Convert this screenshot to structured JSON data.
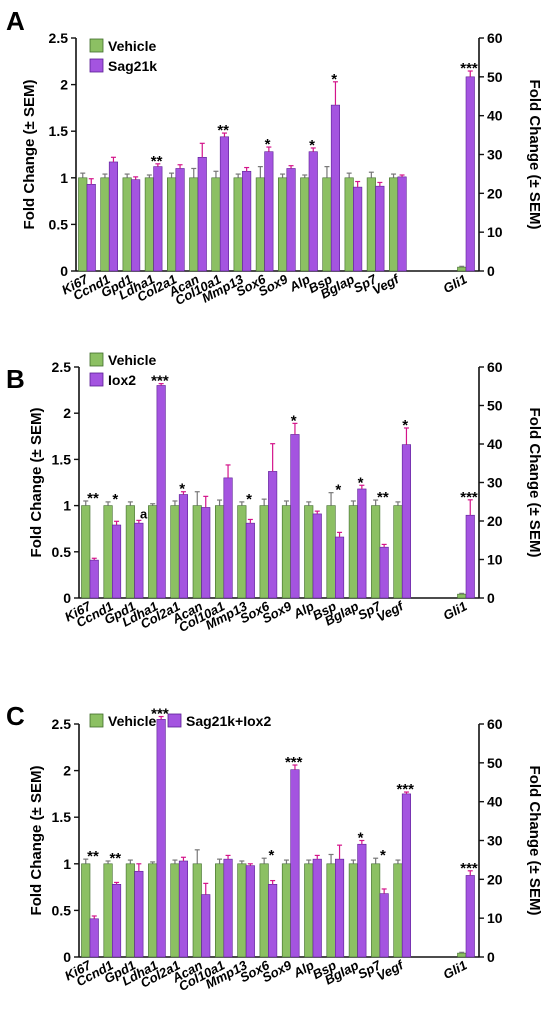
{
  "figure": {
    "colors": {
      "vehicle": "#8cc063",
      "vehicle_stroke": "#3f6b2a",
      "treated": "#a454e0",
      "treated_stroke": "#5b1f94",
      "error_bar": "#d4148a",
      "error_bar_vehicle": "#777777",
      "axis": "#111111"
    }
  },
  "chart_data": [
    {
      "type": "bar",
      "panel_label": "A",
      "ylabel_left": "Fold Change (± SEM)",
      "ylabel_right": "Fold Change (± SEM)",
      "ylim_left": [
        0,
        2.5
      ],
      "ylim_right": [
        0,
        60
      ],
      "yticks_left": [
        "0",
        "0.5",
        "1",
        "1.5",
        "2",
        "2.5"
      ],
      "yticks_right": [
        "0",
        "10",
        "20",
        "30",
        "40",
        "50",
        "60"
      ],
      "legend_placement": "top-left",
      "categories": [
        "Ki67",
        "Ccnd1",
        "Gpd1",
        "Ldha1",
        "Col2a1",
        "Acan",
        "Col10a1",
        "Mmp13",
        "Sox6",
        "Sox9",
        "Alp",
        "Bsp",
        "Bglap",
        "Sp7",
        "Vegf",
        "Gli1"
      ],
      "right_axis_categories": [
        "Gli1"
      ],
      "series": [
        {
          "name": "Vehicle",
          "values": [
            1.0,
            1.0,
            1.0,
            1.0,
            1.0,
            1.0,
            1.0,
            1.0,
            1.0,
            1.0,
            1.0,
            1.0,
            1.0,
            1.0,
            1.0,
            1.0
          ],
          "errors": [
            0.05,
            0.04,
            0.04,
            0.03,
            0.05,
            0.1,
            0.07,
            0.04,
            0.12,
            0.04,
            0.03,
            0.12,
            0.05,
            0.06,
            0.04,
            0.2
          ]
        },
        {
          "name": "Sag21k",
          "values": [
            0.93,
            1.17,
            0.98,
            1.12,
            1.1,
            1.22,
            1.44,
            1.07,
            1.28,
            1.1,
            1.28,
            1.78,
            0.9,
            0.91,
            1.01,
            50.0
          ],
          "errors": [
            0.06,
            0.05,
            0.03,
            0.03,
            0.04,
            0.15,
            0.04,
            0.04,
            0.05,
            0.03,
            0.04,
            0.25,
            0.06,
            0.04,
            0.02,
            1.5
          ]
        }
      ],
      "annotations": [
        {
          "category": "Ldha1",
          "text": "**"
        },
        {
          "category": "Col10a1",
          "text": "**"
        },
        {
          "category": "Sox6",
          "text": "*"
        },
        {
          "category": "Alp",
          "text": "*"
        },
        {
          "category": "Bsp",
          "text": "*"
        },
        {
          "category": "Gli1",
          "text": "***"
        }
      ]
    },
    {
      "type": "bar",
      "panel_label": "B",
      "ylabel_left": "Fold Change (± SEM)",
      "ylabel_right": "Fold Change (± SEM)",
      "ylim_left": [
        0,
        2.5
      ],
      "ylim_right": [
        0,
        60
      ],
      "yticks_left": [
        "0",
        "0.5",
        "1",
        "1.5",
        "2",
        "2.5"
      ],
      "yticks_right": [
        "0",
        "10",
        "20",
        "30",
        "40",
        "50",
        "60"
      ],
      "legend_placement": "top-left",
      "categories": [
        "Ki67",
        "Ccnd1",
        "Gpd1",
        "Ldha1",
        "Col2a1",
        "Acan",
        "Col10a1",
        "Mmp13",
        "Sox6",
        "Sox9",
        "Alp",
        "Bsp",
        "Bglap",
        "Sp7",
        "Vegf",
        "Gli1"
      ],
      "right_axis_categories": [
        "Gli1"
      ],
      "series": [
        {
          "name": "Vehicle",
          "values": [
            1.0,
            1.0,
            1.0,
            1.0,
            1.0,
            1.0,
            1.0,
            1.0,
            1.0,
            1.0,
            1.0,
            1.0,
            1.0,
            1.0,
            1.0,
            1.0
          ],
          "errors": [
            0.05,
            0.04,
            0.04,
            0.02,
            0.05,
            0.15,
            0.06,
            0.04,
            0.07,
            0.05,
            0.04,
            0.14,
            0.05,
            0.06,
            0.04,
            0.2
          ]
        },
        {
          "name": "Iox2",
          "values": [
            0.41,
            0.79,
            0.81,
            2.3,
            1.12,
            0.98,
            1.3,
            0.81,
            1.37,
            1.77,
            0.91,
            0.66,
            1.18,
            0.55,
            1.66,
            21.5
          ],
          "errors": [
            0.02,
            0.04,
            0.03,
            0.02,
            0.03,
            0.12,
            0.14,
            0.04,
            0.3,
            0.12,
            0.03,
            0.05,
            0.04,
            0.03,
            0.18,
            4.0
          ]
        }
      ],
      "annotations": [
        {
          "category": "Ki67",
          "text": "**"
        },
        {
          "category": "Ccnd1",
          "text": "*"
        },
        {
          "category": "Gpd1",
          "text": "a"
        },
        {
          "category": "Ldha1",
          "text": "***"
        },
        {
          "category": "Col2a1",
          "text": "*"
        },
        {
          "category": "Mmp13",
          "text": "*"
        },
        {
          "category": "Sox9",
          "text": "*"
        },
        {
          "category": "Bsp",
          "text": "*"
        },
        {
          "category": "Bglap",
          "text": "*"
        },
        {
          "category": "Sp7",
          "text": "**"
        },
        {
          "category": "Vegf",
          "text": "*"
        },
        {
          "category": "Gli1",
          "text": "***"
        }
      ]
    },
    {
      "type": "bar",
      "panel_label": "C",
      "ylabel_left": "Fold Change (± SEM)",
      "ylabel_right": "Fold Change (± SEM)",
      "ylim_left": [
        0,
        2.5
      ],
      "ylim_right": [
        0,
        60
      ],
      "yticks_left": [
        "0",
        "0.5",
        "1",
        "1.5",
        "2",
        "2.5"
      ],
      "yticks_right": [
        "0",
        "10",
        "20",
        "30",
        "40",
        "50",
        "60"
      ],
      "legend_placement": "top",
      "categories": [
        "Ki67",
        "Ccnd1",
        "Gpd1",
        "Ldha1",
        "Col2a1",
        "Acan",
        "Col10a1",
        "Mmp13",
        "Sox6",
        "Sox9",
        "Alp",
        "Bsp",
        "Bglap",
        "Sp7",
        "Vegf",
        "Gli1"
      ],
      "right_axis_categories": [
        "Gli1"
      ],
      "series": [
        {
          "name": "Vehicle",
          "values": [
            1.0,
            1.0,
            1.0,
            1.0,
            1.0,
            1.0,
            1.0,
            1.0,
            1.0,
            1.0,
            1.0,
            1.0,
            1.0,
            1.0,
            1.0,
            1.0
          ],
          "errors": [
            0.05,
            0.03,
            0.04,
            0.02,
            0.04,
            0.15,
            0.05,
            0.03,
            0.06,
            0.04,
            0.04,
            0.1,
            0.04,
            0.06,
            0.04,
            0.2
          ]
        },
        {
          "name": "Sag21k+Iox2",
          "values": [
            0.41,
            0.78,
            0.92,
            2.55,
            1.03,
            0.67,
            1.05,
            0.98,
            0.78,
            2.01,
            1.05,
            1.05,
            1.21,
            0.68,
            1.75,
            21.0
          ],
          "errors": [
            0.03,
            0.02,
            0.08,
            0.03,
            0.04,
            0.12,
            0.04,
            0.02,
            0.04,
            0.05,
            0.04,
            0.15,
            0.04,
            0.05,
            0.02,
            1.2
          ]
        }
      ],
      "annotations": [
        {
          "category": "Ki67",
          "text": "**"
        },
        {
          "category": "Ccnd1",
          "text": "**"
        },
        {
          "category": "Ldha1",
          "text": "***"
        },
        {
          "category": "Sox6",
          "text": "*"
        },
        {
          "category": "Sox9",
          "text": "***"
        },
        {
          "category": "Bglap",
          "text": "*"
        },
        {
          "category": "Sp7",
          "text": "*"
        },
        {
          "category": "Vegf",
          "text": "***"
        },
        {
          "category": "Gli1",
          "text": "***"
        }
      ]
    }
  ]
}
